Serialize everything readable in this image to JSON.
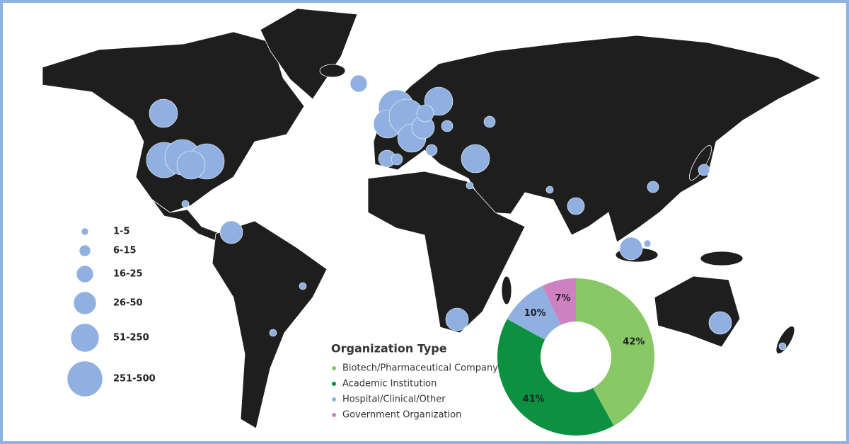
{
  "size_legend": {
    "labels": [
      "1-5",
      "6-15",
      "16-25",
      "26-50",
      "51-250",
      "251-500"
    ]
  },
  "chart_data": {
    "type": "donut",
    "title": "Organization Type",
    "categories": [
      "Biotech/Pharmaceutical Company",
      "Academic Institution",
      "Hospital/Clinical/Other",
      "Government Organization"
    ],
    "values": [
      42,
      41,
      10,
      7
    ],
    "value_labels": [
      "42%",
      "41%",
      "10%",
      "7%"
    ],
    "colors": [
      "#88c866",
      "#0b9140",
      "#8fb0e0",
      "#cf80c0"
    ]
  }
}
